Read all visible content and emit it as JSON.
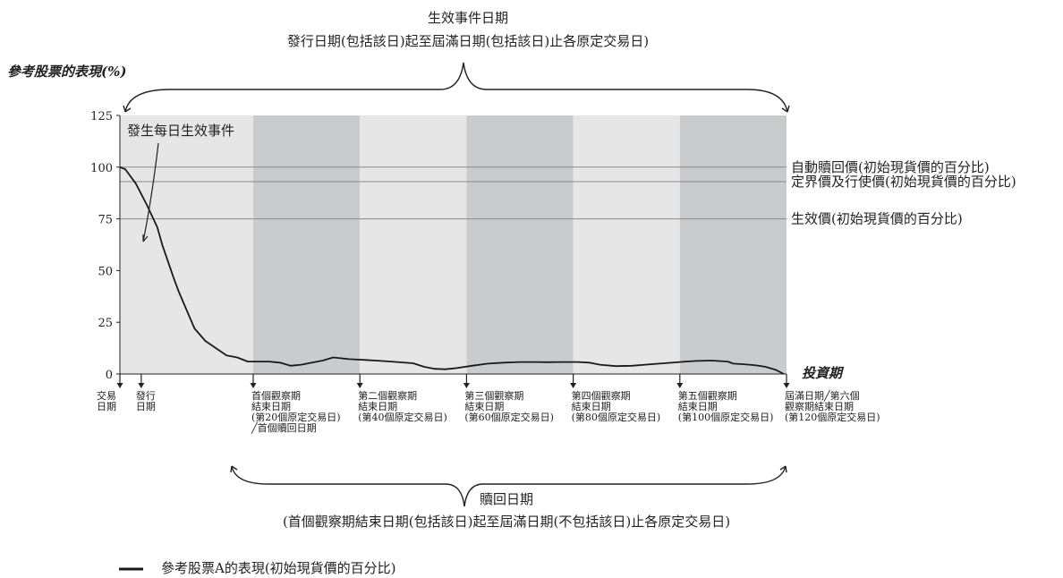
{
  "header": {
    "event_title": "生效事件日期",
    "event_subtitle": "發行日期(包括該日)起至屆滿日期(包括該日)止各原定交易日)",
    "y_title": "參考股票的表現(%)"
  },
  "annotation": {
    "event_note": "發生每日生效事件"
  },
  "levels": [
    {
      "label": "自動贖回價(初始現貨價的百分比)",
      "value": 100
    },
    {
      "label": "定界價及行使價(初始現貨價的百分比)",
      "value": 93
    },
    {
      "label": "生效價(初始現貨價的百分比)",
      "value": 75
    }
  ],
  "x_axis_label": "投資期",
  "dates": [
    {
      "lines": [
        "交易",
        "日期"
      ]
    },
    {
      "lines": [
        "發行",
        "日期"
      ]
    },
    {
      "lines": [
        "首個觀察期",
        "結束日期",
        "(第20個原定交易日)",
        "╱首個贖回日期"
      ]
    },
    {
      "lines": [
        "第二個觀察期",
        "結束日期",
        "(第40個原定交易日)"
      ]
    },
    {
      "lines": [
        "第三個觀察期",
        "結束日期",
        "(第60個原定交易日)"
      ]
    },
    {
      "lines": [
        "第四個觀察期",
        "結束日期",
        "(第80個原定交易日)"
      ]
    },
    {
      "lines": [
        "第五個觀察期",
        "結束日期",
        "(第100個原定交易日)"
      ]
    },
    {
      "lines": [
        "屆滿日期╱第六個",
        "觀察期結束日期",
        "(第120個原定交易日)"
      ]
    }
  ],
  "footer": {
    "redemption_title": "贖回日期",
    "redemption_subtitle": "(首個觀察期結束日期(包括該日)起至屆滿日期(不包括該日)止各原定交易日)"
  },
  "legend": {
    "label": "參考股票A的表現(初始現貨價的百分比)"
  },
  "colors": {
    "light_band": "#e6e6e6",
    "dark_band": "#c9cbcd",
    "line": "#1a1a1a",
    "level_line": "#8a8a8a"
  },
  "chart_data": {
    "type": "line",
    "title": "",
    "xlabel": "投資期",
    "ylabel": "參考股票的表現(%)",
    "ylim": [
      0,
      125
    ],
    "yticks": [
      0,
      25,
      50,
      75,
      100,
      125
    ],
    "xlim": [
      -5,
      120
    ],
    "grid": false,
    "legend_position": "bottom-left",
    "reference_lines": [
      {
        "name": "自動贖回價",
        "y": 100
      },
      {
        "name": "定界價及行使價",
        "y": 93
      },
      {
        "name": "生效價",
        "y": 75
      }
    ],
    "bands": [
      {
        "from": -5,
        "to": 20,
        "shade": "light"
      },
      {
        "from": 20,
        "to": 40,
        "shade": "dark"
      },
      {
        "from": 40,
        "to": 60,
        "shade": "light"
      },
      {
        "from": 60,
        "to": 80,
        "shade": "dark"
      },
      {
        "from": 80,
        "to": 100,
        "shade": "light"
      },
      {
        "from": 100,
        "to": 120,
        "shade": "dark"
      }
    ],
    "series": [
      {
        "name": "參考股票A的表現(初始現貨價的百分比)",
        "x": [
          -5,
          -4,
          -2,
          0,
          2,
          3,
          5,
          6,
          7,
          9,
          11,
          15,
          17,
          19,
          21,
          23,
          25,
          27,
          29,
          31,
          33,
          35,
          38,
          41,
          44,
          47,
          50,
          52,
          54,
          56,
          58,
          61,
          64,
          67,
          70,
          73,
          75,
          78,
          81,
          83,
          85,
          88,
          91,
          94,
          97,
          100,
          103,
          106,
          109,
          110,
          112,
          114,
          116,
          118,
          119.5
        ],
        "y": [
          100,
          99,
          92,
          82,
          71,
          62,
          47,
          40,
          34,
          22,
          16,
          9,
          8,
          6,
          6,
          6,
          5.5,
          4,
          4.5,
          5.5,
          6.5,
          8,
          7.2,
          6.8,
          6.3,
          5.8,
          5.2,
          3.5,
          2.5,
          2.3,
          2.8,
          4,
          5,
          5.5,
          5.8,
          5.8,
          5.7,
          5.8,
          5.8,
          5.5,
          4.5,
          3.8,
          4,
          4.6,
          5.2,
          5.8,
          6.3,
          6.5,
          6,
          5,
          4.7,
          4.3,
          3.5,
          2,
          0
        ]
      }
    ]
  }
}
